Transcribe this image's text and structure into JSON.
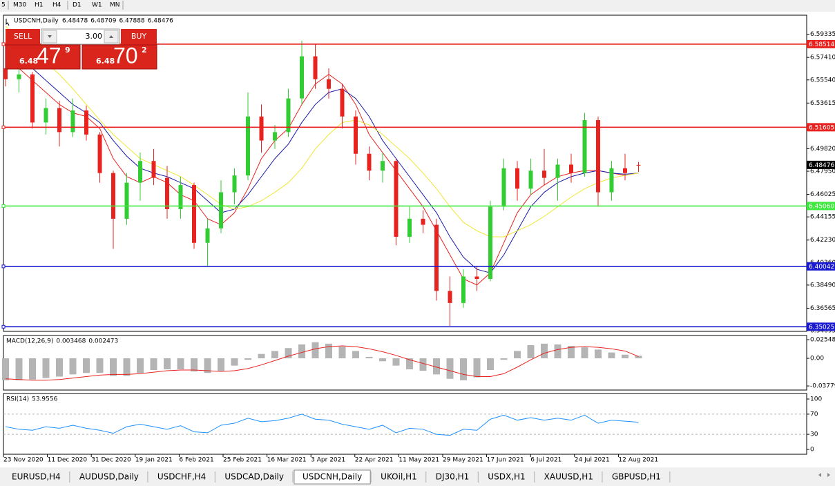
{
  "toolbar": [
    "5",
    "M30",
    "H1",
    "H4",
    "D1",
    "W1",
    "MN"
  ],
  "trade_panel": {
    "sell": "SELL",
    "buy": "BUY",
    "volume": "3.00",
    "bid": {
      "prefix": "6.48",
      "big": "47",
      "small": "9"
    },
    "ask": {
      "prefix": "6.48",
      "big": "70",
      "small": "2"
    }
  },
  "tabs": [
    {
      "label": "EURUSD,H4"
    },
    {
      "label": "AUDUSD,Daily"
    },
    {
      "label": "USDCHF,H4"
    },
    {
      "label": "USDCAD,Daily"
    },
    {
      "label": "USDCNH,Daily",
      "active": true
    },
    {
      "label": "UKOil,H1"
    },
    {
      "label": "DJ30,H1"
    },
    {
      "label": "USDX,H1"
    },
    {
      "label": "XAUUSD,H1"
    },
    {
      "label": "GBPUSD,H1"
    }
  ],
  "chart_data": {
    "type": "candlestick",
    "title": "USDCNH,Daily",
    "up_color": "#32cd32",
    "down_color": "#e8231f",
    "xlabels": [
      "23 Nov 2020",
      "11 Dec 2020",
      "31 Dec 2020",
      "19 Jan 2021",
      "6 Feb 2021",
      "25 Feb 2021",
      "16 Mar 2021",
      "3 Apr 2021",
      "22 Apr 2021",
      "11 May 2021",
      "29 May 2021",
      "17 Jun 2021",
      "6 Jul 2021",
      "24 Jul 2021",
      "12 Aug 2021"
    ],
    "open": [
      6.565,
      6.556,
      6.56,
      6.52,
      6.532,
      6.512,
      6.53,
      6.51,
      6.478,
      6.44,
      6.47,
      6.488,
      6.474,
      6.448,
      6.468,
      6.42,
      6.432,
      6.462,
      6.476,
      6.525,
      6.505,
      6.512,
      6.54,
      6.575,
      6.556,
      6.548,
      6.525,
      6.494,
      6.48,
      6.488,
      6.425,
      6.44,
      6.435,
      6.38,
      6.37,
      6.392,
      6.39,
      6.45,
      6.482,
      6.465,
      6.48,
      6.474,
      6.485,
      6.478,
      6.522,
      6.462,
      6.482,
      6.48478
    ],
    "high": [
      6.578,
      6.565,
      6.562,
      6.54,
      6.538,
      6.54,
      6.534,
      6.512,
      6.48,
      6.478,
      6.495,
      6.498,
      6.484,
      6.475,
      6.47,
      6.44,
      6.472,
      6.482,
      6.545,
      6.535,
      6.518,
      6.548,
      6.588,
      6.585,
      6.565,
      6.552,
      6.53,
      6.5,
      6.495,
      6.49,
      6.45,
      6.447,
      6.44,
      6.392,
      6.398,
      6.4,
      6.455,
      6.49,
      6.488,
      6.49,
      6.498,
      6.49,
      6.494,
      6.528,
      6.525,
      6.488,
      6.494,
      6.48709
    ],
    "low": [
      6.55,
      6.545,
      6.515,
      6.51,
      6.5,
      6.508,
      6.505,
      6.47,
      6.415,
      6.435,
      6.455,
      6.468,
      6.44,
      6.44,
      6.415,
      6.4,
      6.428,
      6.452,
      6.472,
      6.495,
      6.498,
      6.508,
      6.535,
      6.548,
      6.54,
      6.515,
      6.485,
      6.472,
      6.47,
      6.418,
      6.42,
      6.428,
      6.372,
      6.351,
      6.366,
      6.38,
      6.388,
      6.447,
      6.455,
      6.46,
      6.468,
      6.455,
      6.47,
      6.475,
      6.45,
      6.455,
      6.472,
      6.47888
    ],
    "close": [
      6.556,
      6.56,
      6.52,
      6.532,
      6.512,
      6.53,
      6.51,
      6.478,
      6.44,
      6.47,
      6.488,
      6.474,
      6.448,
      6.468,
      6.42,
      6.432,
      6.462,
      6.476,
      6.525,
      6.505,
      6.512,
      6.54,
      6.575,
      6.556,
      6.548,
      6.525,
      6.494,
      6.48,
      6.488,
      6.425,
      6.44,
      6.435,
      6.38,
      6.37,
      6.392,
      6.39,
      6.45,
      6.482,
      6.465,
      6.48,
      6.474,
      6.485,
      6.478,
      6.522,
      6.462,
      6.482,
      6.478,
      6.48476
    ],
    "series": [
      {
        "color": "#e8231f",
        "values": [
          6.57,
          6.565,
          6.555,
          6.545,
          6.535,
          6.528,
          6.525,
          6.515,
          6.49,
          6.475,
          6.47,
          6.475,
          6.47,
          6.46,
          6.455,
          6.44,
          6.435,
          6.445,
          6.465,
          6.49,
          6.505,
          6.515,
          6.535,
          6.552,
          6.56,
          6.552,
          6.535,
          6.51,
          6.495,
          6.48,
          6.465,
          6.45,
          6.43,
          6.41,
          6.39,
          6.385,
          6.395,
          6.42,
          6.445,
          6.46,
          6.468,
          6.475,
          6.478,
          6.48,
          6.48,
          6.478,
          6.476,
          6.478
        ]
      },
      {
        "color": "#1a1aa8",
        "values": [
          6.585,
          6.575,
          6.565,
          6.555,
          6.545,
          6.535,
          6.528,
          6.52,
          6.505,
          6.492,
          6.482,
          6.478,
          6.475,
          6.47,
          6.465,
          6.455,
          6.445,
          6.448,
          6.46,
          6.475,
          6.49,
          6.502,
          6.52,
          6.535,
          6.545,
          6.548,
          6.54,
          6.525,
          6.505,
          6.49,
          6.475,
          6.46,
          6.445,
          6.425,
          6.408,
          6.398,
          6.395,
          6.41,
          6.43,
          6.45,
          6.462,
          6.47,
          6.475,
          6.478,
          6.48,
          6.478,
          6.477,
          6.478
        ]
      },
      {
        "color": "#f0e630",
        "values": [
          6.6,
          6.59,
          6.58,
          6.57,
          6.56,
          6.548,
          6.535,
          6.522,
          6.51,
          6.5,
          6.49,
          6.485,
          6.48,
          6.475,
          6.468,
          6.46,
          6.452,
          6.448,
          6.45,
          6.455,
          6.462,
          6.47,
          6.482,
          6.498,
          6.51,
          6.52,
          6.522,
          6.518,
          6.51,
          6.5,
          6.49,
          6.478,
          6.465,
          6.45,
          6.437,
          6.43,
          6.425,
          6.425,
          6.43,
          6.435,
          6.442,
          6.45,
          6.458,
          6.465,
          6.47,
          6.474,
          6.476,
          6.478
        ]
      }
    ],
    "levels": [
      {
        "value": 6.58514,
        "color": "#e8231f"
      },
      {
        "value": 6.51605,
        "color": "#e8231f"
      },
      {
        "value": 6.4506,
        "label": "6.45060",
        "color": "#3ee83e"
      },
      {
        "value": 6.40042,
        "color": "#1a1ad0"
      },
      {
        "value": 6.35025,
        "color": "#1a1ad0"
      }
    ],
    "ylim": [
      6.3464,
      6.6092
    ],
    "yticks": [
      6.59335,
      {
        "value": 6.5741,
        "label": "6.57410"
      },
      {
        "value": 6.5554,
        "label": "6.55540"
      },
      6.53615,
      {
        "value": 6.4982,
        "label": "6.49820"
      },
      {
        "value": 6.4795,
        "label": "6.47950"
      },
      6.46025,
      6.44155,
      {
        "value": 6.4223,
        "label": "6.42230"
      },
      {
        "value": 6.4036,
        "label": "6.40360"
      },
      {
        "value": 6.3849,
        "label": "6.38490"
      },
      6.36565,
      6.34695
    ],
    "indicators": [
      {
        "type": "macd",
        "title": "MACD(12,26,9)",
        "ylim": [
          -0.0434,
          0.0312
        ],
        "yticks": [
          0.025485,
          {
            "value": 0,
            "label": "0.00"
          },
          -0.037797
        ],
        "histogram": {
          "color": "#b4b4b4",
          "values": [
            -0.03,
            -0.03,
            -0.029,
            -0.027,
            -0.025,
            -0.022,
            -0.02,
            -0.02,
            -0.024,
            -0.024,
            -0.02,
            -0.016,
            -0.015,
            -0.015,
            -0.018,
            -0.02,
            -0.017,
            -0.01,
            -0.002,
            0.006,
            0.01,
            0.014,
            0.019,
            0.022,
            0.02,
            0.016,
            0.01,
            0.002,
            -0.004,
            -0.01,
            -0.015,
            -0.017,
            -0.022,
            -0.028,
            -0.03,
            -0.026,
            -0.016,
            -0.002,
            0.01,
            0.018,
            0.02,
            0.019,
            0.017,
            0.015,
            0.012,
            0.008,
            0.005,
            0.003468
          ]
        },
        "signal": {
          "color": "#e8231f",
          "values": [
            -0.028,
            -0.029,
            -0.03,
            -0.03,
            -0.029,
            -0.027,
            -0.025,
            -0.023,
            -0.022,
            -0.022,
            -0.021,
            -0.019,
            -0.017,
            -0.016,
            -0.016,
            -0.017,
            -0.018,
            -0.017,
            -0.014,
            -0.009,
            -0.003,
            0.003,
            0.008,
            0.013,
            0.016,
            0.017,
            0.016,
            0.013,
            0.009,
            0.004,
            -0.002,
            -0.007,
            -0.012,
            -0.017,
            -0.022,
            -0.025,
            -0.025,
            -0.021,
            -0.012,
            -0.002,
            0.007,
            0.012,
            0.015,
            0.016,
            0.015,
            0.013,
            0.01,
            0.002473
          ]
        }
      },
      {
        "type": "rsi",
        "title": "RSI(14)",
        "ylim": [
          -9.6,
          111
        ],
        "yticks": [
          100,
          70,
          30,
          0
        ],
        "levels": [
          70,
          30
        ],
        "color": "#1e90ff",
        "values": [
          45,
          40,
          38,
          45,
          42,
          48,
          42,
          38,
          32,
          45,
          50,
          45,
          40,
          47,
          35,
          33,
          48,
          52,
          62,
          55,
          57,
          62,
          70,
          60,
          58,
          50,
          45,
          40,
          48,
          33,
          42,
          40,
          30,
          28,
          40,
          38,
          60,
          68,
          58,
          63,
          58,
          62,
          58,
          68,
          52,
          58,
          56,
          53.9556
        ]
      }
    ]
  }
}
